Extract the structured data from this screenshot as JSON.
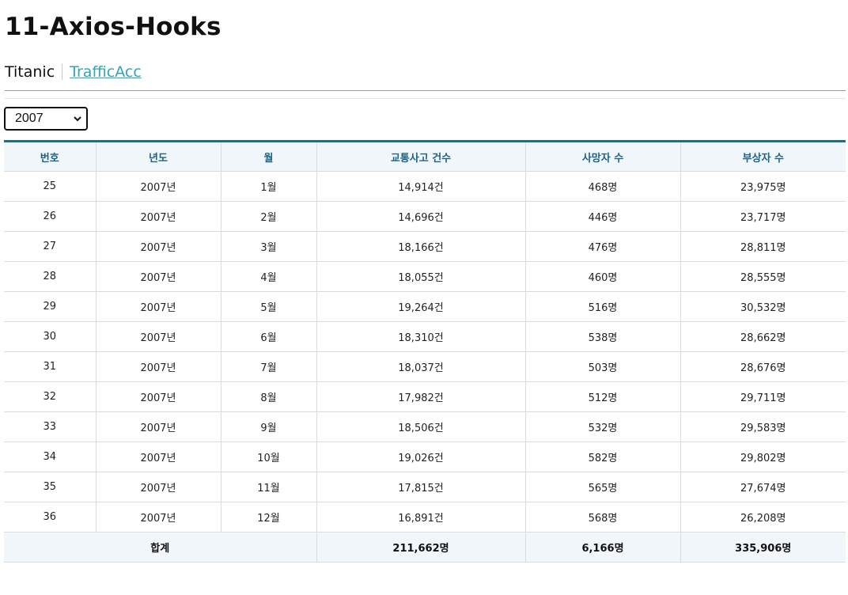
{
  "page": {
    "title": "11-Axios-Hooks"
  },
  "nav": {
    "items": [
      {
        "label": "Titanic",
        "active": false
      },
      {
        "label": "TrafficAcc",
        "active": true
      }
    ]
  },
  "filter": {
    "year_selected": "2007"
  },
  "table": {
    "headers": [
      "번호",
      "년도",
      "월",
      "교통사고 건수",
      "사망자 수",
      "부상자 수"
    ],
    "rows": [
      {
        "no": "25",
        "year": "2007년",
        "month": "1월",
        "accidents": "14,914건",
        "deaths": "468명",
        "injuries": "23,975명"
      },
      {
        "no": "26",
        "year": "2007년",
        "month": "2월",
        "accidents": "14,696건",
        "deaths": "446명",
        "injuries": "23,717명"
      },
      {
        "no": "27",
        "year": "2007년",
        "month": "3월",
        "accidents": "18,166건",
        "deaths": "476명",
        "injuries": "28,811명"
      },
      {
        "no": "28",
        "year": "2007년",
        "month": "4월",
        "accidents": "18,055건",
        "deaths": "460명",
        "injuries": "28,555명"
      },
      {
        "no": "29",
        "year": "2007년",
        "month": "5월",
        "accidents": "19,264건",
        "deaths": "516명",
        "injuries": "30,532명"
      },
      {
        "no": "30",
        "year": "2007년",
        "month": "6월",
        "accidents": "18,310건",
        "deaths": "538명",
        "injuries": "28,662명"
      },
      {
        "no": "31",
        "year": "2007년",
        "month": "7월",
        "accidents": "18,037건",
        "deaths": "503명",
        "injuries": "28,676명"
      },
      {
        "no": "32",
        "year": "2007년",
        "month": "8월",
        "accidents": "17,982건",
        "deaths": "512명",
        "injuries": "29,711명"
      },
      {
        "no": "33",
        "year": "2007년",
        "month": "9월",
        "accidents": "18,506건",
        "deaths": "532명",
        "injuries": "29,583명"
      },
      {
        "no": "34",
        "year": "2007년",
        "month": "10월",
        "accidents": "19,026건",
        "deaths": "582명",
        "injuries": "29,802명"
      },
      {
        "no": "35",
        "year": "2007년",
        "month": "11월",
        "accidents": "17,815건",
        "deaths": "565명",
        "injuries": "27,674명"
      },
      {
        "no": "36",
        "year": "2007년",
        "month": "12월",
        "accidents": "16,891건",
        "deaths": "568명",
        "injuries": "26,208명"
      }
    ],
    "footer": {
      "label": "합계",
      "accidents": "211,662명",
      "deaths": "6,166명",
      "injuries": "335,906명"
    }
  },
  "colors": {
    "link_active": "#2ea5bd",
    "table_border_top": "#1f6d8c",
    "header_bg": "#f0f6f9",
    "header_text": "#1e6287"
  },
  "icons": {
    "select_arrow": "chevron-down-icon"
  }
}
